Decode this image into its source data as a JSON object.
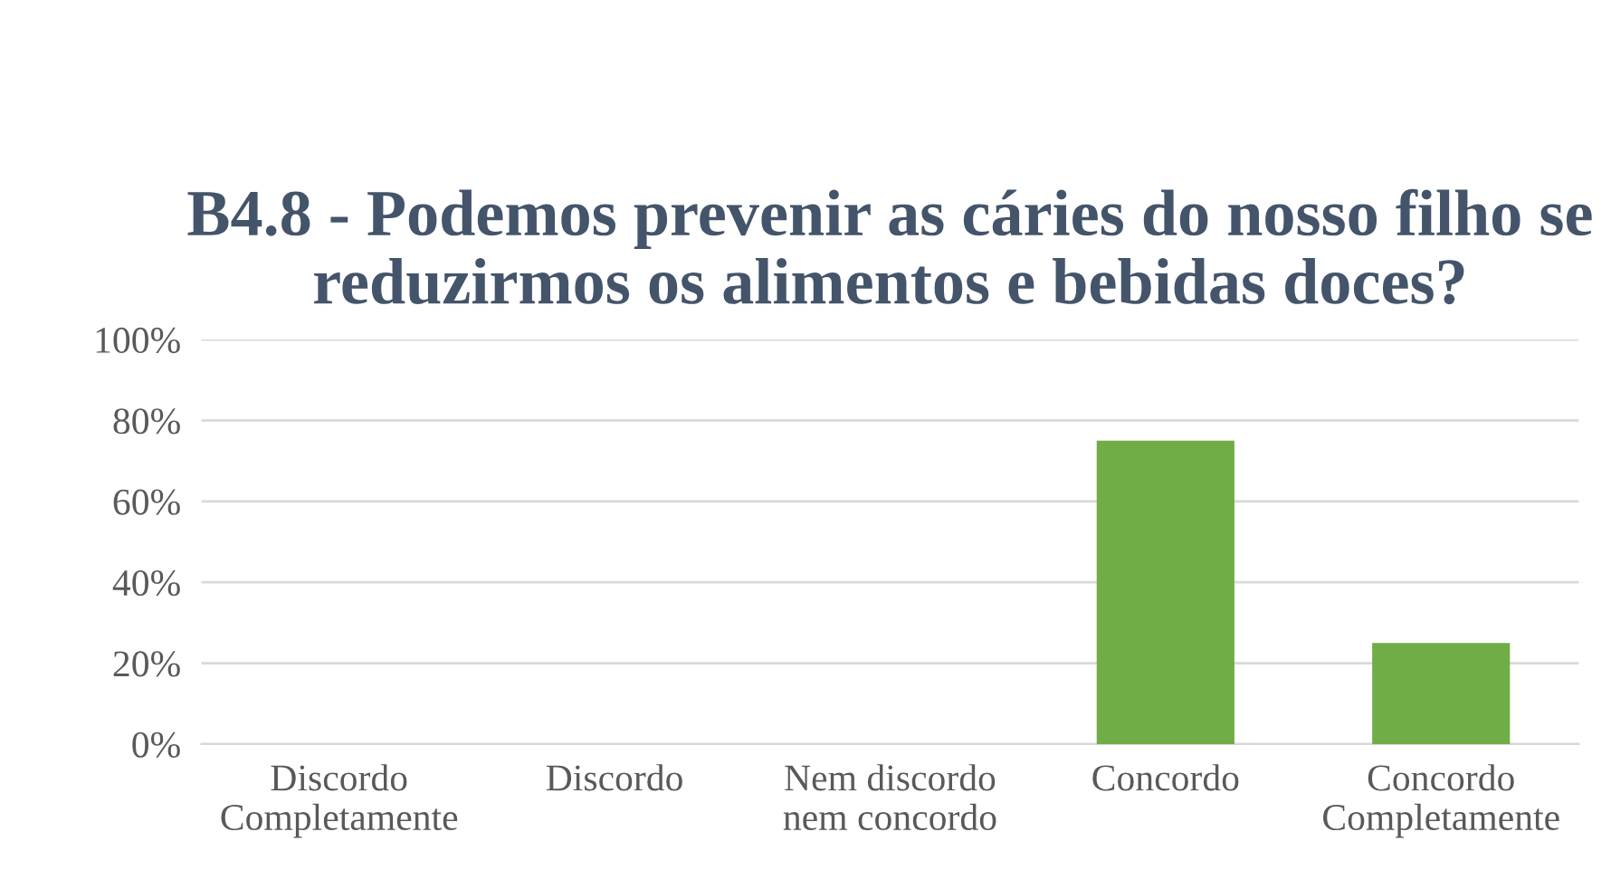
{
  "chart_data": {
    "type": "bar",
    "title": "B4.8 - Podemos prevenir as cáries do nosso filho se reduzirmos os alimentos e bebidas doces?",
    "categories": [
      "Discordo\nCompletamente",
      "Discordo",
      "Nem discordo\nnem concordo",
      "Concordo",
      "Concordo\nCompletamente"
    ],
    "values": [
      0,
      0,
      0,
      75,
      25
    ],
    "color": "#70ad47",
    "ylim": [
      0,
      100
    ],
    "yticks": [
      {
        "value": 0,
        "label": "0%"
      },
      {
        "value": 20,
        "label": "20%"
      },
      {
        "value": 40,
        "label": "40%"
      },
      {
        "value": 60,
        "label": "60%"
      },
      {
        "value": 80,
        "label": "80%"
      },
      {
        "value": 100,
        "label": "100%"
      }
    ],
    "grid": "y"
  }
}
